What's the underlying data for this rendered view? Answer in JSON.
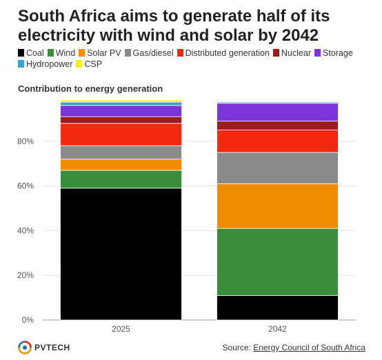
{
  "title": "South Africa aims to generate half of its electricity with wind and solar by 2042",
  "subtitle": "Contribution to energy generation",
  "legend": [
    {
      "label": "Coal",
      "color": "#000000"
    },
    {
      "label": "Wind",
      "color": "#3a8e3a"
    },
    {
      "label": "Solar PV",
      "color": "#f08c00"
    },
    {
      "label": "Gas/diesel",
      "color": "#8a8a8a"
    },
    {
      "label": "Distributed generation",
      "color": "#f2280f"
    },
    {
      "label": "Nuclear",
      "color": "#9b1c20"
    },
    {
      "label": "Storage",
      "color": "#7b35d8"
    },
    {
      "label": "Hydropower",
      "color": "#3aa0cf"
    },
    {
      "label": "CSP",
      "color": "#f8f020"
    }
  ],
  "chart_data": {
    "type": "bar",
    "stacked": true,
    "categories": [
      "2025",
      "2042"
    ],
    "series": [
      {
        "name": "Coal",
        "color": "#000000",
        "values": [
          59,
          11
        ]
      },
      {
        "name": "Wind",
        "color": "#3a8e3a",
        "values": [
          8,
          30
        ]
      },
      {
        "name": "Solar PV",
        "color": "#f08c00",
        "values": [
          5,
          20
        ]
      },
      {
        "name": "Gas/diesel",
        "color": "#8a8a8a",
        "values": [
          6,
          14
        ]
      },
      {
        "name": "Distributed generation",
        "color": "#f2280f",
        "values": [
          10,
          10
        ]
      },
      {
        "name": "Nuclear",
        "color": "#9b1c20",
        "values": [
          3,
          4
        ]
      },
      {
        "name": "Storage",
        "color": "#7b35d8",
        "values": [
          5,
          8
        ]
      },
      {
        "name": "Hydropower",
        "color": "#3aa0cf",
        "values": [
          1.5,
          0.5
        ]
      },
      {
        "name": "CSP",
        "color": "#f8f020",
        "values": [
          1,
          0.3
        ]
      }
    ],
    "y_ticks": [
      "0%",
      "20%",
      "40%",
      "60%",
      "80%"
    ],
    "y_tick_values": [
      0,
      20,
      40,
      60,
      80
    ],
    "ylim": [
      0,
      100
    ],
    "grid": true,
    "legend_position": "top"
  },
  "logo": {
    "text": "PVTECH"
  },
  "source": {
    "prefix": "Source: ",
    "link": "Energy Council of South Africa"
  }
}
